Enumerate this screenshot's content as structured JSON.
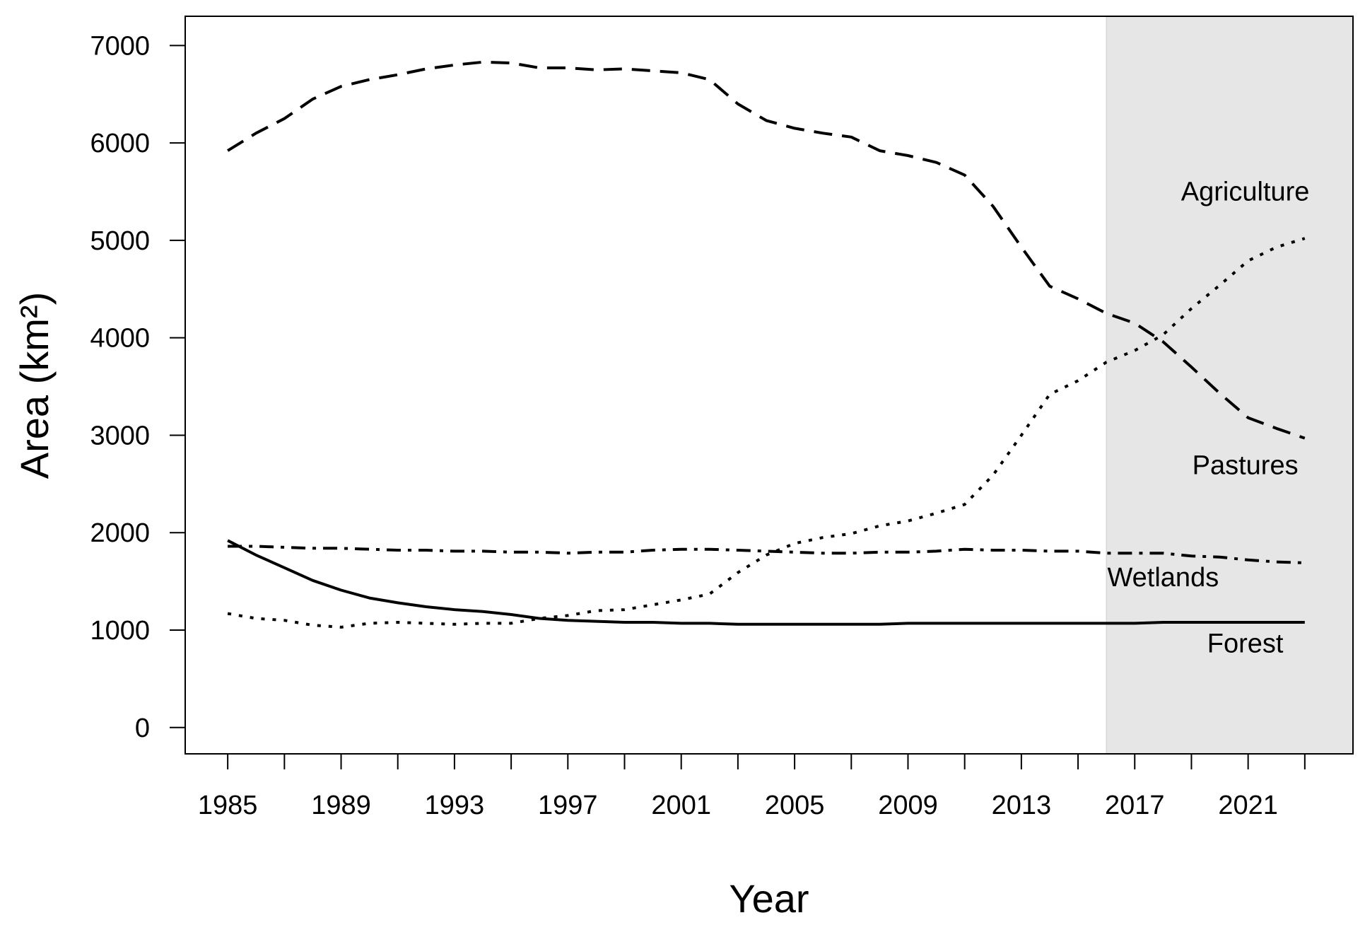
{
  "chart_data": {
    "type": "line",
    "title": "",
    "xlabel": "Year",
    "ylabel": "Area (km²)",
    "xlim": [
      1983.5,
      2024.7
    ],
    "ylim": [
      -270,
      7300
    ],
    "xticks": [
      1985,
      1987,
      1989,
      1991,
      1993,
      1995,
      1997,
      1999,
      2001,
      2003,
      2005,
      2007,
      2009,
      2011,
      2013,
      2015,
      2017,
      2019,
      2021,
      2023
    ],
    "xtick_labels": [
      {
        "year": 1985,
        "text": "1985"
      },
      {
        "year": 1989,
        "text": "1989"
      },
      {
        "year": 1993,
        "text": "1993"
      },
      {
        "year": 1997,
        "text": "1997"
      },
      {
        "year": 2001,
        "text": "2001"
      },
      {
        "year": 2005,
        "text": "2005"
      },
      {
        "year": 2009,
        "text": "2009"
      },
      {
        "year": 2013,
        "text": "2013"
      },
      {
        "year": 2017,
        "text": "2017"
      },
      {
        "year": 2021,
        "text": "2021"
      }
    ],
    "yticks": [
      0,
      1000,
      2000,
      3000,
      4000,
      5000,
      6000,
      7000
    ],
    "shaded_region": {
      "x_start": 2016,
      "x_end": 2024.7,
      "color": "#e6e6e6"
    },
    "grid": false,
    "legend": "none (series labelled directly on the chart)",
    "colors": {
      "line": "#000000",
      "shade": "#e6e6e6",
      "shade_border": "#cccccc"
    },
    "x": [
      1985,
      1986,
      1987,
      1988,
      1989,
      1990,
      1991,
      1992,
      1993,
      1994,
      1995,
      1996,
      1997,
      1998,
      1999,
      2000,
      2001,
      2002,
      2003,
      2004,
      2005,
      2006,
      2007,
      2008,
      2009,
      2010,
      2011,
      2012,
      2013,
      2014,
      2015,
      2016,
      2017,
      2018,
      2019,
      2020,
      2021,
      2022,
      2023
    ],
    "series": [
      {
        "name": "Pastures",
        "style": "dashed",
        "values": [
          5920,
          6100,
          6250,
          6450,
          6580,
          6650,
          6700,
          6760,
          6800,
          6830,
          6820,
          6770,
          6770,
          6750,
          6760,
          6740,
          6720,
          6650,
          6400,
          6230,
          6150,
          6100,
          6060,
          5920,
          5870,
          5800,
          5670,
          5350,
          4930,
          4530,
          4400,
          4250,
          4150,
          3960,
          3700,
          3430,
          3180,
          3070,
          2970
        ]
      },
      {
        "name": "Agriculture",
        "style": "dotted",
        "values": [
          1170,
          1120,
          1100,
          1050,
          1030,
          1070,
          1080,
          1070,
          1060,
          1070,
          1070,
          1120,
          1150,
          1200,
          1210,
          1260,
          1310,
          1370,
          1590,
          1770,
          1890,
          1950,
          1990,
          2070,
          2120,
          2200,
          2290,
          2590,
          3000,
          3420,
          3560,
          3750,
          3870,
          4030,
          4300,
          4540,
          4790,
          4930,
          5020
        ]
      },
      {
        "name": "Wetlands",
        "style": "dash-dot",
        "values": [
          1860,
          1860,
          1850,
          1840,
          1840,
          1830,
          1820,
          1820,
          1810,
          1810,
          1800,
          1800,
          1790,
          1800,
          1800,
          1820,
          1830,
          1830,
          1820,
          1810,
          1800,
          1790,
          1790,
          1800,
          1800,
          1810,
          1830,
          1820,
          1820,
          1810,
          1810,
          1790,
          1790,
          1790,
          1760,
          1750,
          1720,
          1700,
          1690
        ]
      },
      {
        "name": "Forest",
        "style": "solid",
        "values": [
          1920,
          1770,
          1640,
          1510,
          1410,
          1330,
          1280,
          1240,
          1210,
          1190,
          1160,
          1120,
          1100,
          1090,
          1080,
          1080,
          1070,
          1070,
          1060,
          1060,
          1060,
          1060,
          1060,
          1060,
          1070,
          1070,
          1070,
          1070,
          1070,
          1070,
          1070,
          1070,
          1070,
          1080,
          1080,
          1080,
          1080,
          1080,
          1080
        ]
      }
    ],
    "annotations": [
      {
        "text": "Agriculture",
        "year": 2020.9,
        "value": 5410
      },
      {
        "text": "Pastures",
        "year": 2020.9,
        "value": 2600
      },
      {
        "text": "Wetlands",
        "year": 2018.0,
        "value": 1450
      },
      {
        "text": "Forest",
        "year": 2020.9,
        "value": 770
      }
    ]
  }
}
